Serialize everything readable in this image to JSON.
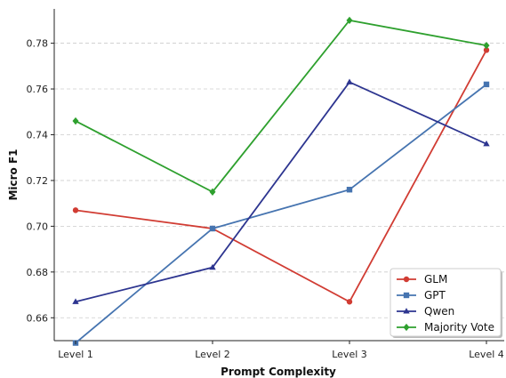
{
  "chart_data": {
    "type": "line",
    "title": "",
    "xlabel": "Prompt Complexity",
    "ylabel": "Micro F1",
    "categories": [
      "Level 1",
      "Level 2",
      "Level 3",
      "Level 4"
    ],
    "ylim": [
      0.65,
      0.795
    ],
    "yticks": [
      0.66,
      0.68,
      0.7,
      0.72,
      0.74,
      0.76,
      0.78
    ],
    "ytick_labels": [
      "0.66",
      "0.68",
      "0.70",
      "0.72",
      "0.74",
      "0.76",
      "0.78"
    ],
    "grid": "horizontal dashed",
    "legend_position": "bottom-right",
    "series": [
      {
        "name": "GLM",
        "values": [
          0.707,
          0.699,
          0.667,
          0.777
        ],
        "color": "#d13c33",
        "marker": "circle"
      },
      {
        "name": "GPT",
        "values": [
          0.649,
          0.699,
          0.716,
          0.762
        ],
        "color": "#4674b0",
        "marker": "square"
      },
      {
        "name": "Qwen",
        "values": [
          0.667,
          0.682,
          0.763,
          0.736
        ],
        "color": "#2d3590",
        "marker": "triangle"
      },
      {
        "name": "Majority Vote",
        "values": [
          0.746,
          0.715,
          0.79,
          0.779
        ],
        "color": "#2ea02e",
        "marker": "diamond"
      }
    ]
  }
}
